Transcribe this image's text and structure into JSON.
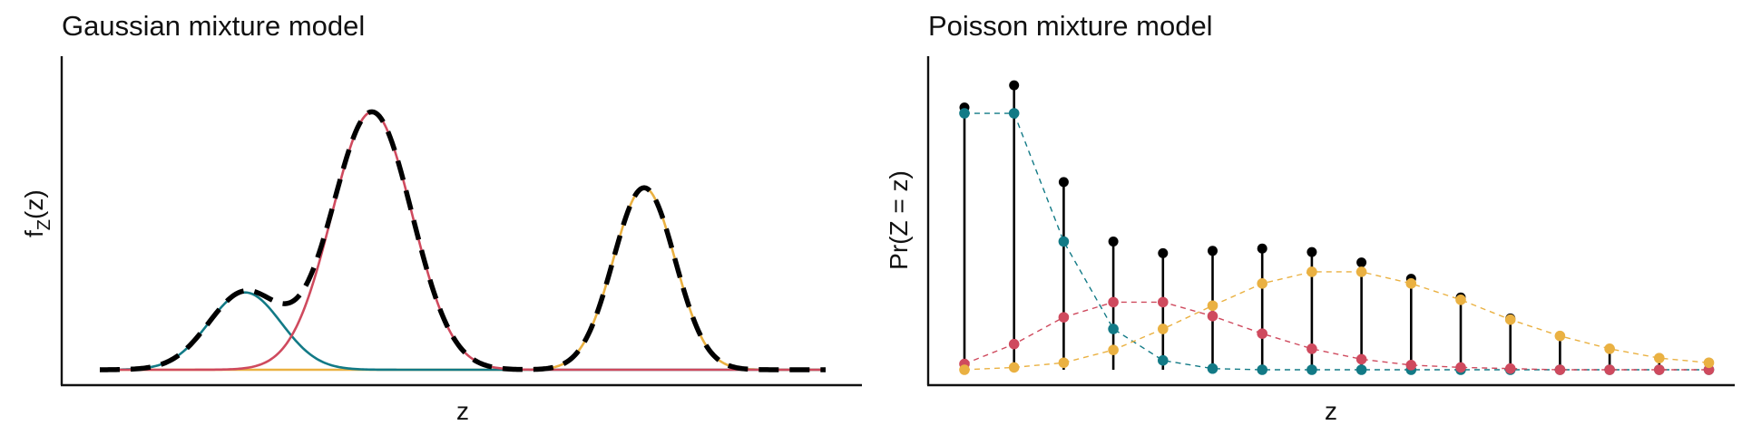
{
  "colors": {
    "teal": "#127a86",
    "red": "#cf4a5e",
    "orange": "#eab142",
    "black": "#000000"
  },
  "chart_data": [
    {
      "type": "line",
      "title": "Gaussian mixture model",
      "xlabel": "z",
      "ylabel_main": "f",
      "ylabel_sub": "Z",
      "ylabel_tail": "(z)",
      "xlim": [
        0,
        20
      ],
      "ylim": [
        0,
        0.23
      ],
      "x_ticks_shown": false,
      "y_ticks_shown": false,
      "components": [
        {
          "weight": 0.15,
          "mean": 4.0,
          "sd": 1.0,
          "color_key": "teal"
        },
        {
          "weight": 0.55,
          "mean": 7.5,
          "sd": 1.1,
          "color_key": "red"
        },
        {
          "weight": 0.3,
          "mean": 15.0,
          "sd": 0.85,
          "color_key": "orange"
        }
      ],
      "mixture": {
        "style": "dashed",
        "color_key": "black"
      }
    },
    {
      "type": "scatter",
      "title": "Poisson mixture model",
      "xlabel": "z",
      "ylabel": "Pr(Z = z)",
      "x": [
        0,
        1,
        2,
        3,
        4,
        5,
        6,
        7,
        8,
        9,
        10,
        11,
        12,
        13,
        14,
        15
      ],
      "ylim": [
        0,
        0.255
      ],
      "x_ticks_shown": false,
      "y_ticks_shown": false,
      "series": [
        {
          "color_key": "teal",
          "values": [
            0.22,
            0.22,
            0.11,
            0.035,
            0.008,
            0.001,
            0.0,
            0.0,
            0.0,
            0.0,
            0.0,
            0.0,
            0.0,
            0.0,
            0.0,
            0.0
          ]
        },
        {
          "color_key": "red",
          "values": [
            0.005,
            0.022,
            0.045,
            0.058,
            0.058,
            0.046,
            0.031,
            0.018,
            0.009,
            0.004,
            0.002,
            0.001,
            0.0,
            0.0,
            0.0,
            0.0
          ]
        },
        {
          "color_key": "orange",
          "values": [
            0.0,
            0.002,
            0.006,
            0.017,
            0.035,
            0.055,
            0.074,
            0.084,
            0.084,
            0.074,
            0.06,
            0.043,
            0.029,
            0.018,
            0.01,
            0.006
          ]
        }
      ],
      "total": {
        "values": [
          0.225,
          0.244,
          0.161,
          0.11,
          0.1,
          0.102,
          0.104,
          0.101,
          0.092,
          0.078,
          0.062,
          0.044,
          0.029,
          0.018,
          0.01,
          0.006
        ],
        "color_key": "black"
      }
    }
  ]
}
